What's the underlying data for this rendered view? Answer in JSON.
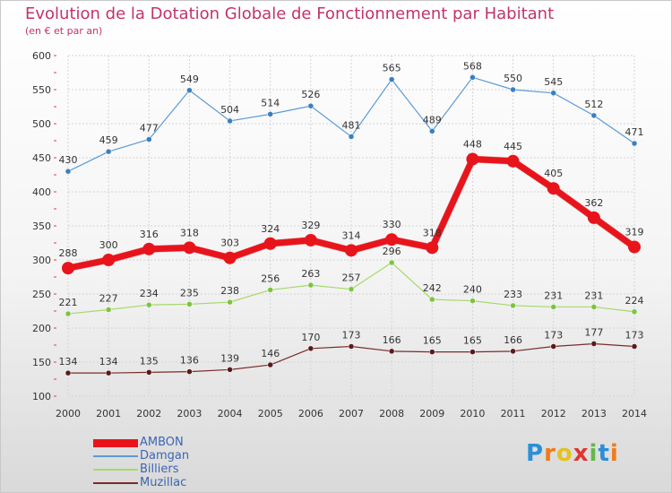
{
  "title": "Evolution de la Dotation Globale de Fonctionnement par Habitant",
  "subtitle": "(en € et par an)",
  "logo": {
    "text": "Proxiti",
    "letters": [
      {
        "ch": "P",
        "color": "#2a8fd6"
      },
      {
        "ch": "r",
        "color": "#ef7b1a"
      },
      {
        "ch": "o",
        "color": "#e3c21c"
      },
      {
        "ch": "x",
        "color": "#e3342f"
      },
      {
        "ch": "i",
        "color": "#63b84a"
      },
      {
        "ch": "t",
        "color": "#2a8fd6"
      },
      {
        "ch": "i",
        "color": "#ef7b1a"
      }
    ]
  },
  "chart_data": {
    "type": "line",
    "title": "Evolution de la Dotation Globale de Fonctionnement par Habitant",
    "subtitle": "(en € et par an)",
    "x": [
      "2000",
      "2001",
      "2002",
      "2003",
      "2004",
      "2005",
      "2006",
      "2007",
      "2008",
      "2009",
      "2010",
      "2011",
      "2012",
      "2013",
      "2014"
    ],
    "ylim": [
      100,
      600
    ],
    "yticks": [
      100,
      150,
      200,
      250,
      300,
      350,
      400,
      450,
      500,
      550,
      600
    ],
    "grid": true,
    "legend_position": "bottom-left",
    "series": [
      {
        "name": "Damgan",
        "color": "#5b9bd5",
        "marker": "#3a7fc1",
        "width": 1.2,
        "values": [
          430,
          459,
          477,
          549,
          504,
          514,
          526,
          481,
          565,
          489,
          568,
          550,
          545,
          512,
          471
        ]
      },
      {
        "name": "Billiers",
        "color": "#a6d96a",
        "marker": "#7cc43f",
        "width": 1.2,
        "values": [
          221,
          227,
          234,
          235,
          238,
          256,
          263,
          257,
          296,
          242,
          240,
          233,
          231,
          231,
          224
        ]
      },
      {
        "name": "Muzillac",
        "color": "#7a2b2b",
        "marker": "#5a1a1a",
        "width": 1.2,
        "values": [
          134,
          134,
          135,
          136,
          139,
          146,
          170,
          173,
          166,
          165,
          165,
          166,
          173,
          177,
          173
        ]
      },
      {
        "name": "AMBON",
        "color": "#e8141c",
        "marker": "#e8141c",
        "width": 7,
        "values": [
          288,
          300,
          316,
          318,
          303,
          324,
          329,
          314,
          330,
          318,
          448,
          445,
          405,
          362,
          319
        ]
      }
    ]
  }
}
